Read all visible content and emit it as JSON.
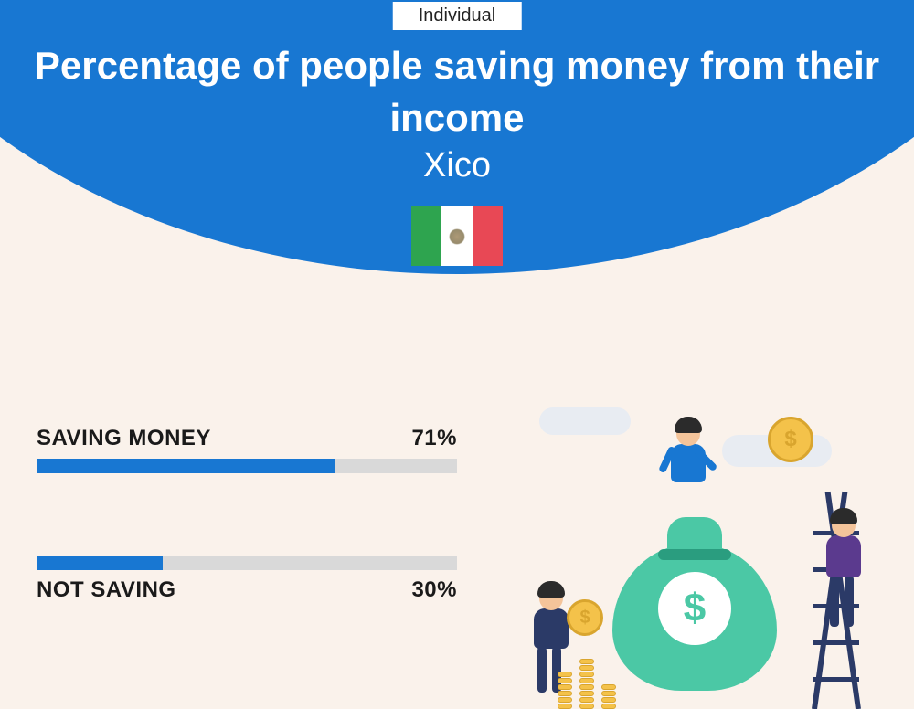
{
  "badge": "Individual",
  "title": "Percentage of people saving money from their income",
  "location": "Xico",
  "flag": {
    "left_color": "#2ea44f",
    "mid_color": "#ffffff",
    "right_color": "#e84855"
  },
  "colors": {
    "header_bg": "#1877d2",
    "page_bg": "#faf2eb",
    "bar_fill": "#1877d2",
    "bar_track": "#d9d9d9",
    "text": "#1a1a1a",
    "title_text": "#ffffff"
  },
  "typography": {
    "title_fontsize": 42,
    "title_weight": 700,
    "subtitle_fontsize": 38,
    "label_fontsize": 24,
    "label_weight": 800
  },
  "bars": [
    {
      "label": "SAVING MONEY",
      "value": 71,
      "value_text": "71%",
      "label_position": "above"
    },
    {
      "label": "NOT SAVING",
      "value": 30,
      "value_text": "30%",
      "label_position": "below"
    }
  ],
  "illustration": {
    "money_bag_color": "#4bc8a5",
    "money_bag_symbol": "$",
    "coin_color": "#f4c24a",
    "coin_border": "#d9a52e",
    "ladder_color": "#2b3a67",
    "person_colors": [
      "#1877d2",
      "#2b3a67",
      "#5b3a8e"
    ]
  }
}
